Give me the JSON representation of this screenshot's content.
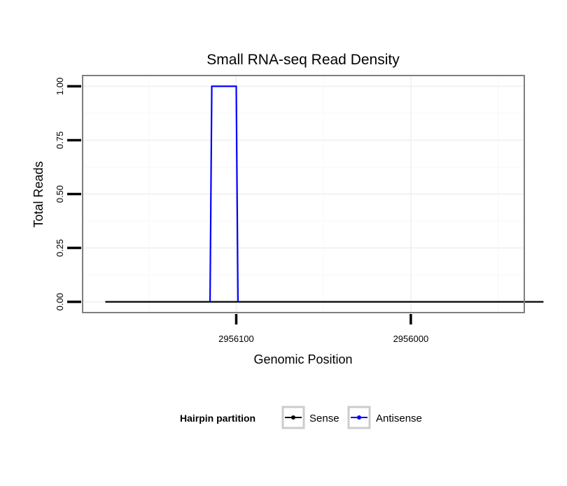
{
  "chart_data": {
    "type": "line",
    "title": "Small RNA-seq Read Density",
    "xlabel": "Genomic Position",
    "ylabel": "Total Reads",
    "x_reversed": true,
    "xlim": [
      2956188,
      2955935
    ],
    "ylim": [
      -0.05,
      1.05
    ],
    "x_ticks": [
      {
        "value": 2956100,
        "label": "2956100"
      },
      {
        "value": 2956000,
        "label": "2956000"
      }
    ],
    "y_ticks": [
      {
        "value": 0.0,
        "label": "0.00"
      },
      {
        "value": 0.25,
        "label": "0.25"
      },
      {
        "value": 0.5,
        "label": "0.50"
      },
      {
        "value": 0.75,
        "label": "0.75"
      },
      {
        "value": 1.0,
        "label": "1.00"
      }
    ],
    "grid": true,
    "legend": {
      "title": "Hairpin partition",
      "position": "bottom"
    },
    "series": [
      {
        "name": "Sense",
        "color": "#000000",
        "points": [
          {
            "x": 2956175,
            "y": 0
          },
          {
            "x": 2955924,
            "y": 0
          }
        ]
      },
      {
        "name": "Antisense",
        "color": "#0000ff",
        "points": [
          {
            "x": 2956115,
            "y": 0
          },
          {
            "x": 2956114,
            "y": 1
          },
          {
            "x": 2956100,
            "y": 1
          },
          {
            "x": 2956099,
            "y": 0
          }
        ]
      }
    ]
  }
}
